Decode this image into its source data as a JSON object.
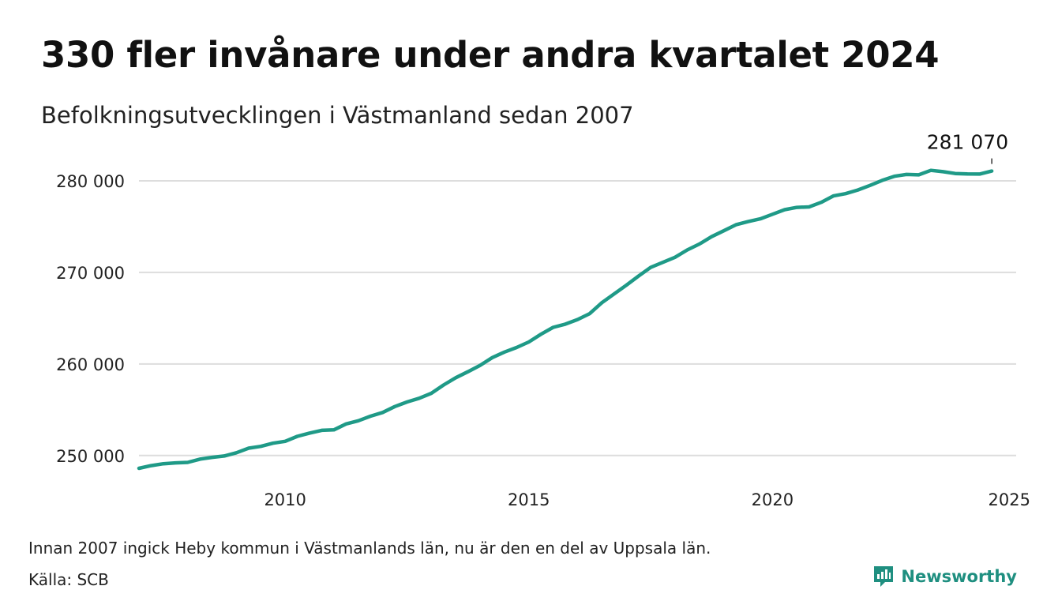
{
  "header": {
    "title": "330 fler invånare under andra kvartalet 2024",
    "subtitle": "Befolkningsutvecklingen i Västmanland sedan 2007"
  },
  "footer": {
    "note": "Innan 2007 ingick Heby kommun i Västmanlands län, nu är den en del av Uppsala län.",
    "source": "Källa: SCB",
    "brand": "Newsworthy"
  },
  "colors": {
    "line": "#1f9a87",
    "grid": "#dddddd",
    "brand": "#1f8f80"
  },
  "icons": {
    "brand_logo": "newsworthy-logo-icon"
  },
  "chart_data": {
    "type": "line",
    "title": "330 fler invånare under andra kvartalet 2024",
    "subtitle": "Befolkningsutvecklingen i Västmanland sedan 2007",
    "xlabel": "",
    "ylabel": "",
    "xlim": [
      2007.0,
      2025.0
    ],
    "ylim": [
      248000,
      282500
    ],
    "x_ticks": [
      2010,
      2015,
      2020,
      2025
    ],
    "y_ticks": [
      250000,
      260000,
      270000,
      280000
    ],
    "x_tick_labels": [
      "2010",
      "2015",
      "2020",
      "2025"
    ],
    "y_tick_labels": [
      "250 000",
      "260 000",
      "270 000",
      "280 000"
    ],
    "grid": "horizontal",
    "annotation": {
      "x": 2024.5,
      "y": 281070,
      "label": "281 070"
    },
    "series": [
      {
        "x": [
          2007.0,
          2007.25,
          2007.5,
          2007.75,
          2008.0,
          2008.25,
          2008.5,
          2008.75,
          2009.0,
          2009.25,
          2009.5,
          2009.75,
          2010.0,
          2010.25,
          2010.5,
          2010.75,
          2011.0,
          2011.25,
          2011.5,
          2011.75,
          2012.0,
          2012.25,
          2012.5,
          2012.75,
          2013.0,
          2013.25,
          2013.5,
          2013.75,
          2014.0,
          2014.25,
          2014.5,
          2014.75,
          2015.0,
          2015.25,
          2015.5,
          2015.75,
          2016.0,
          2016.25,
          2016.5,
          2016.75,
          2017.0,
          2017.25,
          2017.5,
          2017.75,
          2018.0,
          2018.25,
          2018.5,
          2018.75,
          2019.0,
          2019.25,
          2019.5,
          2019.75,
          2020.0,
          2020.25,
          2020.5,
          2020.75,
          2021.0,
          2021.25,
          2021.5,
          2021.75,
          2022.0,
          2022.25,
          2022.5,
          2022.75,
          2023.0,
          2023.25,
          2023.5,
          2023.75,
          2024.0,
          2024.25,
          2024.5
        ],
        "y": [
          248600,
          248900,
          249100,
          249200,
          249250,
          249600,
          249800,
          249950,
          250300,
          250800,
          251000,
          251350,
          251550,
          252100,
          252450,
          252750,
          252800,
          253450,
          253800,
          254300,
          254700,
          255350,
          255850,
          256250,
          256800,
          257700,
          258500,
          259150,
          259850,
          260700,
          261300,
          261800,
          262400,
          263250,
          264000,
          264350,
          264850,
          265500,
          266700,
          267650,
          268600,
          269600,
          270550,
          271100,
          271650,
          272450,
          273100,
          273900,
          274550,
          275200,
          275550,
          275850,
          276350,
          276850,
          277100,
          277150,
          277650,
          278350,
          278600,
          279000,
          279500,
          280050,
          280500,
          280700,
          280650,
          281150,
          281000,
          280800,
          280750,
          280740,
          281070
        ]
      }
    ]
  }
}
